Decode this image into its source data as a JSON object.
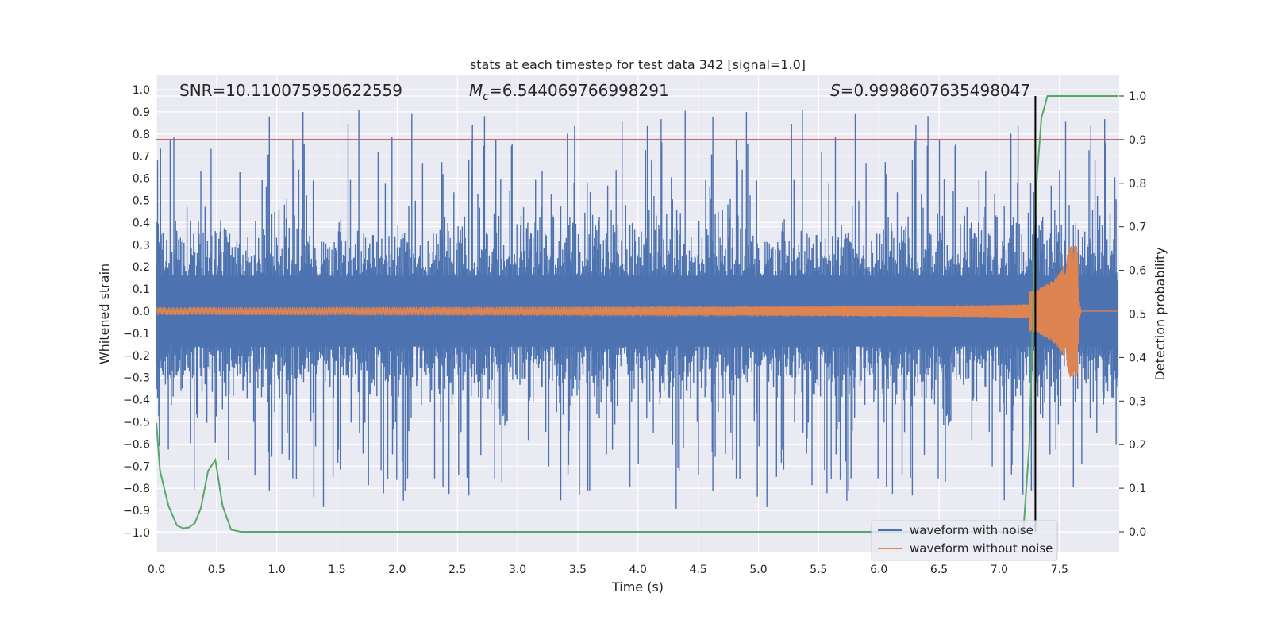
{
  "chart_data": {
    "type": "line",
    "title": "stats at each timestep for test data 342 [signal=1.0]",
    "xlabel": "Time (s)",
    "ylabel": "Whitened strain",
    "y2label": "Detection probability",
    "xlim": [
      0.0,
      8.0
    ],
    "ylim": [
      -1.1,
      1.05
    ],
    "y2lim": [
      -0.05,
      1.02
    ],
    "xticks": [
      "0.0",
      "0.5",
      "1.0",
      "1.5",
      "2.0",
      "2.5",
      "3.0",
      "3.5",
      "4.0",
      "4.5",
      "5.0",
      "5.5",
      "6.0",
      "6.5",
      "7.0",
      "7.5"
    ],
    "yticks": [
      "1.0",
      "0.9",
      "0.8",
      "0.7",
      "0.6",
      "0.5",
      "0.4",
      "0.3",
      "0.2",
      "0.1",
      "0.0",
      "−0.1",
      "−0.2",
      "−0.3",
      "−0.4",
      "−0.5",
      "−0.6",
      "−0.7",
      "−0.8",
      "−0.9",
      "−1.0"
    ],
    "y2ticks": [
      "1.0",
      "0.9",
      "0.8",
      "0.7",
      "0.6",
      "0.5",
      "0.4",
      "0.3",
      "0.2",
      "0.1",
      "0.0"
    ],
    "grid": true,
    "annotations": {
      "snr": "SNR=10.110075950622559",
      "mc_symbol": "M",
      "mc_subscript": "c",
      "mc_value": "=6.544069766998291",
      "s_symbol": "S",
      "s_value": "=0.9998607635498047"
    },
    "threshold_line": {
      "y2": 0.9,
      "color": "#c44e52"
    },
    "detection_time_line": {
      "x": 7.3,
      "color": "#000000"
    },
    "legend": {
      "placement": "lower right",
      "entries": [
        "waveform with noise",
        "waveform without noise"
      ]
    },
    "series": [
      {
        "name": "waveform with noise",
        "color": "#4c72b0",
        "axis": "left",
        "noise_band": {
          "typical_abs": 0.6,
          "peak_max": 0.97,
          "peak_min": -1.0
        }
      },
      {
        "name": "waveform without noise",
        "color": "#dd8452",
        "axis": "left",
        "chirp": {
          "start_amplitude": 0.015,
          "merger_time": 7.65,
          "merger_max": 0.3,
          "merger_min": -0.26,
          "cycles": 430
        }
      },
      {
        "color": "#55a868",
        "axis": "right",
        "x": [
          0.0,
          0.03,
          0.1,
          0.17,
          0.22,
          0.27,
          0.32,
          0.37,
          0.43,
          0.49,
          0.55,
          0.62,
          0.7,
          1.0,
          2.0,
          3.0,
          4.0,
          5.0,
          6.0,
          7.0,
          7.2,
          7.25,
          7.28,
          7.31,
          7.35,
          7.4,
          7.6,
          7.8,
          7.99
        ],
        "y": [
          0.25,
          0.14,
          0.06,
          0.015,
          0.008,
          0.01,
          0.02,
          0.055,
          0.14,
          0.165,
          0.06,
          0.005,
          0.0,
          0.0,
          0.0,
          0.0,
          0.0,
          0.0,
          0.0,
          0.0,
          0.0,
          0.2,
          0.5,
          0.8,
          0.95,
          1.0,
          1.0,
          1.0,
          1.0
        ]
      }
    ]
  }
}
